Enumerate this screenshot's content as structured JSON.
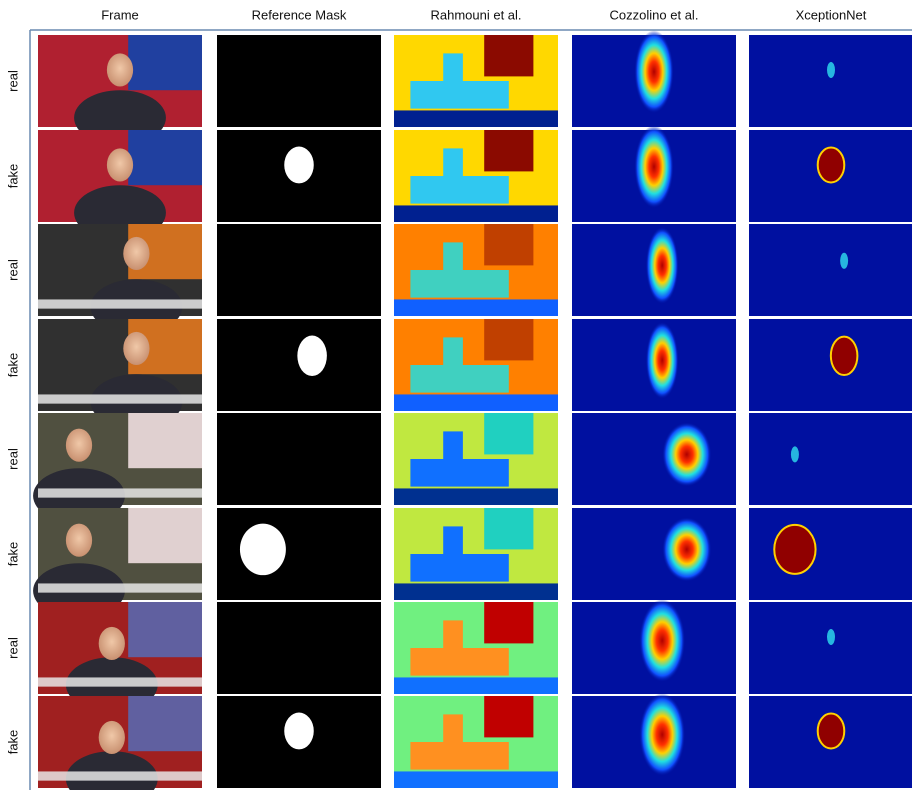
{
  "columns": [
    "Frame",
    "Reference Mask",
    "Rahmouni et al.",
    "Cozzolino et al.",
    "XceptionNet"
  ],
  "row_labels": [
    "real",
    "fake",
    "real",
    "fake",
    "real",
    "fake",
    "real",
    "fake"
  ]
}
